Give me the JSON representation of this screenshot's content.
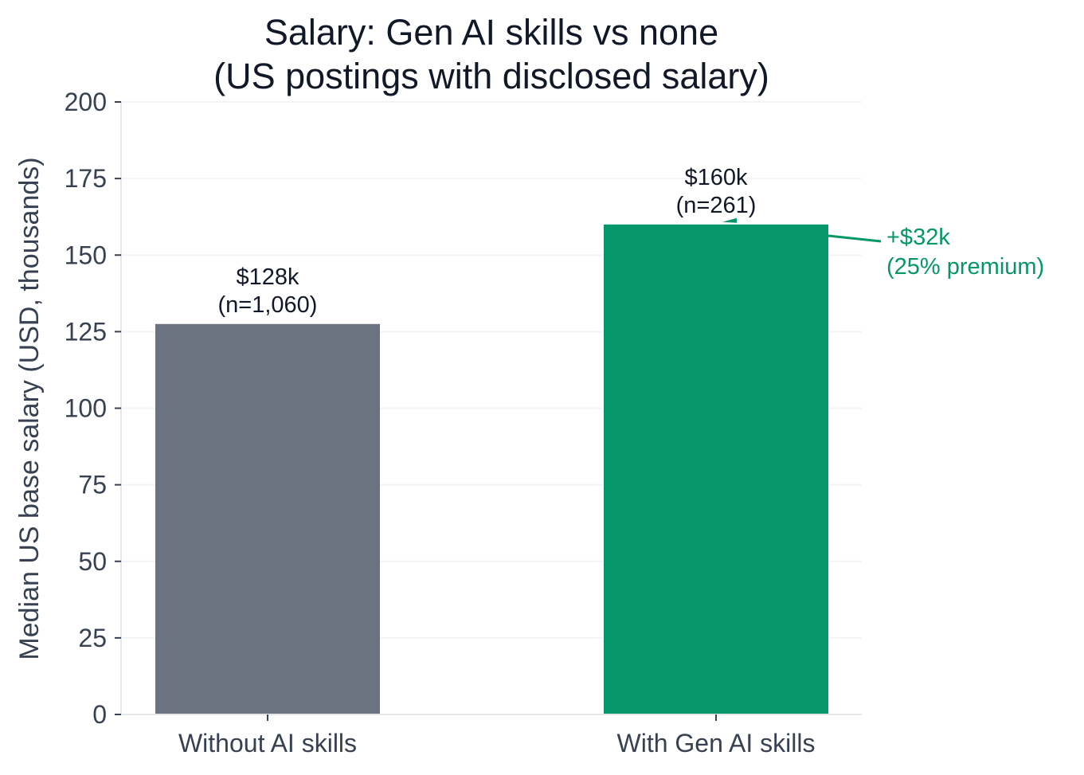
{
  "chart_data": {
    "type": "bar",
    "title_lines": [
      "Salary: Gen AI skills vs none",
      "(US postings with disclosed salary)"
    ],
    "xlabel": "",
    "ylabel": "Median US base salary (USD, thousands)",
    "ylim": [
      0,
      200
    ],
    "yticks": [
      0,
      25,
      50,
      75,
      100,
      125,
      150,
      175,
      200
    ],
    "ytick_labels": [
      "0",
      "25",
      "50",
      "75",
      "100",
      "125",
      "150",
      "175",
      "200"
    ],
    "categories": [
      "Without AI skills",
      "With Gen AI skills"
    ],
    "values": [
      127.5,
      160
    ],
    "colors": [
      "#6b7280",
      "#059669"
    ],
    "value_labels": [
      "$128k",
      "$160k"
    ],
    "count_labels": [
      "(n=1,060)",
      "(n=261)"
    ],
    "grid": "y",
    "annotation": {
      "lines": [
        "+$32k",
        "(25% premium)"
      ],
      "color": "#059669"
    },
    "axis_color": "#e5e7eb",
    "grid_color": "#f3f4f6"
  }
}
